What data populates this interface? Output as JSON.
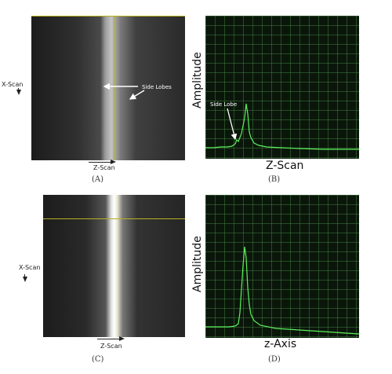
{
  "panels": {
    "a": {
      "caption": "(A)",
      "x_label": "X-Scan",
      "z_label": "Z-Scan",
      "annotation": "Side Lobes"
    },
    "b": {
      "caption": "(B)",
      "ylabel": "Amplitude",
      "xlabel": "Z-Scan",
      "annotation": "Side Lobe"
    },
    "c": {
      "caption": "(C)",
      "x_label": "X-Scan",
      "z_label": "Z-Scan"
    },
    "d": {
      "caption": "(D)",
      "ylabel": "Amplitude",
      "xlabel": "z-Axis"
    }
  },
  "colors": {
    "plot_bg": "#0b160b",
    "grid": "#468c46",
    "trace": "#5cf05c",
    "guide_line": "#b8b020",
    "image_bg": "#262626"
  }
}
